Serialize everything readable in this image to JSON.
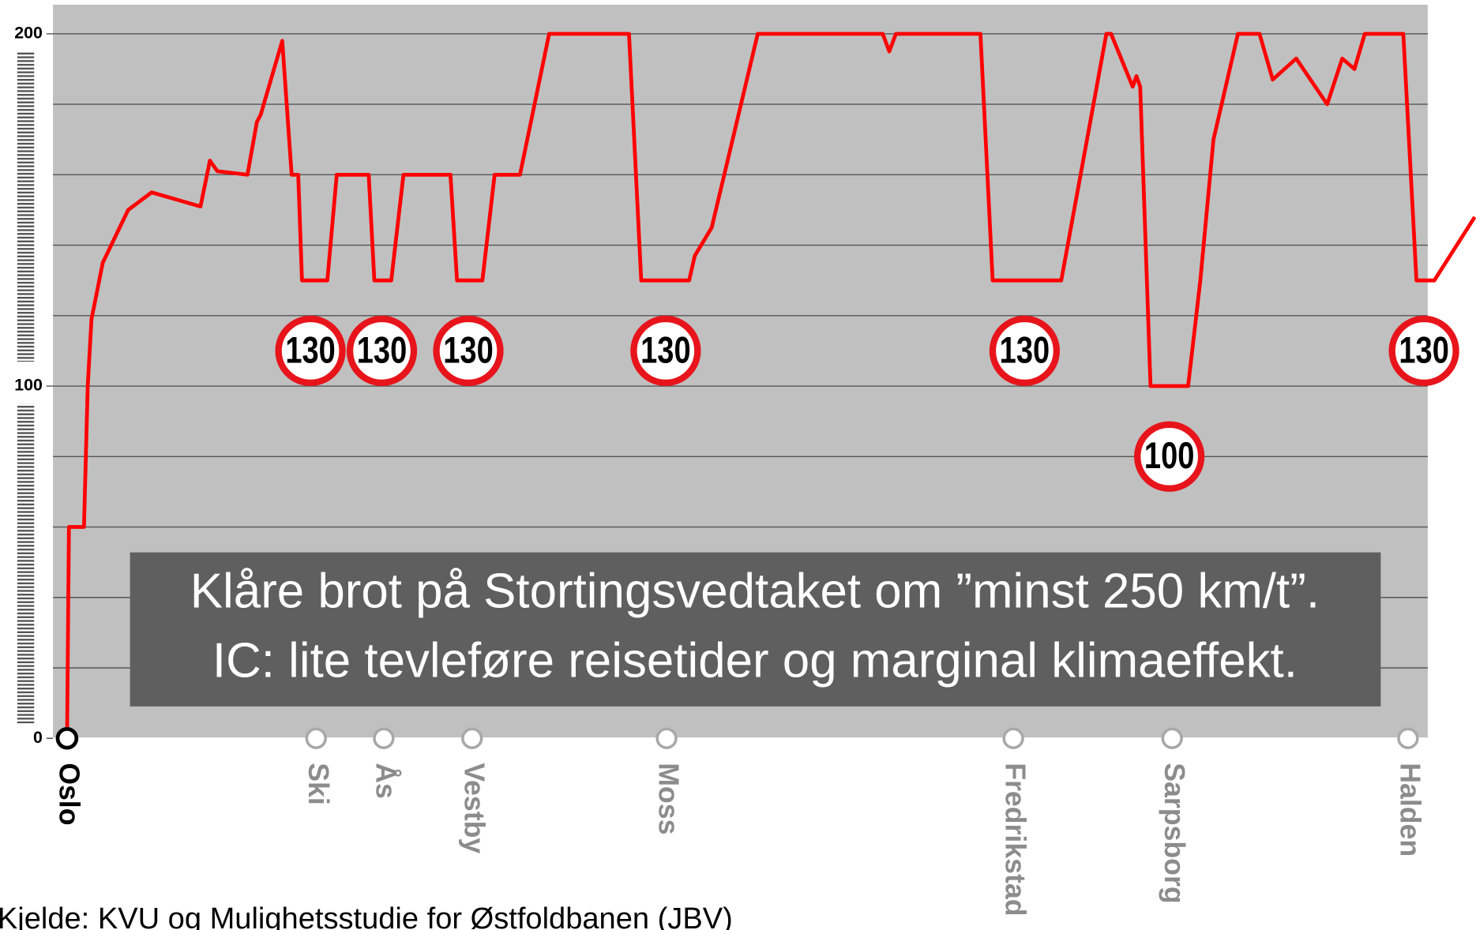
{
  "chart_data": {
    "type": "line",
    "annotation": "Klåre brot på Stortingsvedtaket om ”minst 250 km/t”.",
    "annotation2": "IC: lite tevleføre reisetider og marginal klimaeffekt.",
    "source": "Kjelde: KVU og Mulighetsstudie for Østfoldbanen (JBV)",
    "color": "#ff0000",
    "x": [
      0,
      0.2,
      1.8,
      2.2,
      2.6,
      3.8,
      6.5,
      9,
      14.2,
      15.2,
      16,
      19.2,
      20.2,
      20.6,
      22.9,
      23.9,
      24.6,
      25,
      27.7,
      28.7,
      32.1,
      32.7,
      34.5,
      35.8,
      40.8,
      41.5,
      44.2,
      45.5,
      48.2,
      51.3,
      59.8,
      61.1,
      66.2,
      66.8,
      68.6,
      73.5,
      86.8,
      87.5,
      88.2,
      97.2,
      98.5,
      105.8,
      110.6,
      111.1,
      113.4,
      113.8,
      114.2,
      115.3,
      119.3,
      120.6,
      122,
      124.6,
      126.9,
      128.3,
      130.8,
      134.1,
      135.7,
      137,
      138.1,
      142.2,
      143.6,
      145.5,
      149.8
    ],
    "values": [
      0,
      60,
      60,
      100,
      119,
      135,
      150,
      155,
      151,
      164,
      161,
      160,
      175,
      177,
      198,
      160,
      160,
      130,
      130,
      160,
      160,
      130,
      130,
      160,
      160,
      130,
      130,
      160,
      160,
      200,
      200,
      130,
      130,
      137,
      145,
      200,
      200,
      195,
      200,
      200,
      130,
      130,
      200,
      200,
      185,
      188,
      185,
      100,
      100,
      130,
      170,
      200,
      200,
      187,
      193,
      180,
      193,
      190,
      200,
      200,
      130,
      130,
      148
    ],
    "xlim": [
      -1.5,
      144.8
    ],
    "ylim": [
      0,
      200
    ],
    "yticks": [
      0,
      100,
      200
    ],
    "ygrid": [
      20,
      40,
      60,
      80,
      120,
      140,
      160,
      180
    ],
    "stations": [
      {
        "name": "Oslo",
        "x": 0
      },
      {
        "name": "Ski",
        "x": 26.5
      },
      {
        "name": "Ås",
        "x": 33.7
      },
      {
        "name": "Vestby",
        "x": 43.1
      },
      {
        "name": "Moss",
        "x": 63.8
      },
      {
        "name": "Fredrikstad",
        "x": 100.7
      },
      {
        "name": "Sarpsborg",
        "x": 117.6
      },
      {
        "name": "Halden",
        "x": 142.7
      }
    ],
    "signs": [
      {
        "value": 130,
        "x": 25.9
      },
      {
        "value": 130,
        "x": 33.5
      },
      {
        "value": 130,
        "x": 42.7
      },
      {
        "value": 130,
        "x": 63.7
      },
      {
        "value": 130,
        "x": 101.9
      },
      {
        "value": 100,
        "x": 117.3
      },
      {
        "value": 130,
        "x": 144.4
      }
    ]
  }
}
